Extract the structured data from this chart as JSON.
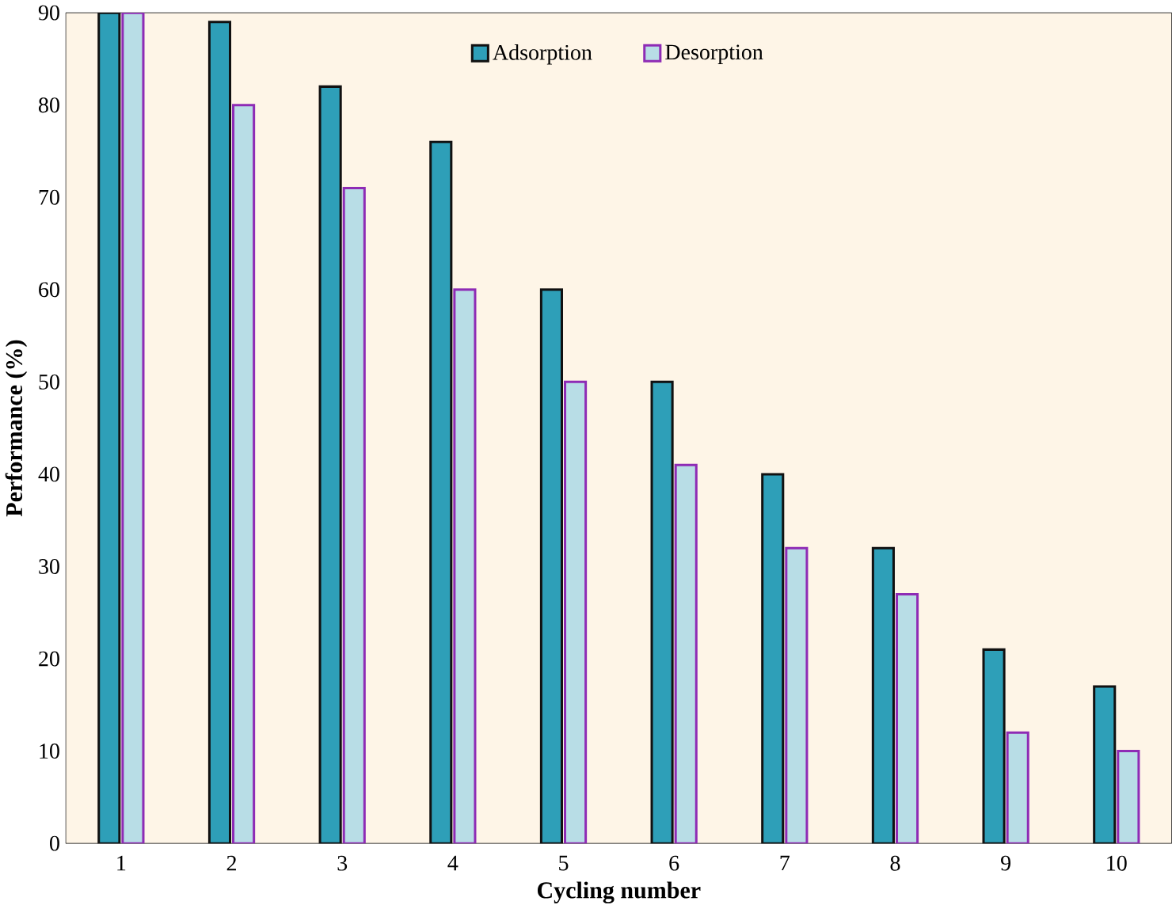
{
  "chart_data": {
    "type": "bar",
    "xlabel": "Cycling number",
    "ylabel": "Performance (%)",
    "categories": [
      "1",
      "2",
      "3",
      "4",
      "5",
      "6",
      "7",
      "8",
      "9",
      "10"
    ],
    "series": [
      {
        "name": "Adsorption",
        "color": "#2e9fb8",
        "values": [
          90,
          89,
          82,
          76,
          60,
          50,
          40,
          32,
          21,
          17
        ]
      },
      {
        "name": "Desorption",
        "color": "#b8dde6",
        "values": [
          90,
          80,
          71,
          60,
          50,
          41,
          32,
          27,
          12,
          10
        ]
      }
    ],
    "ylim": [
      0,
      90
    ],
    "yticks": [
      0,
      10,
      20,
      30,
      40,
      50,
      60,
      70,
      80,
      90
    ],
    "grid": false,
    "legend": "top"
  }
}
